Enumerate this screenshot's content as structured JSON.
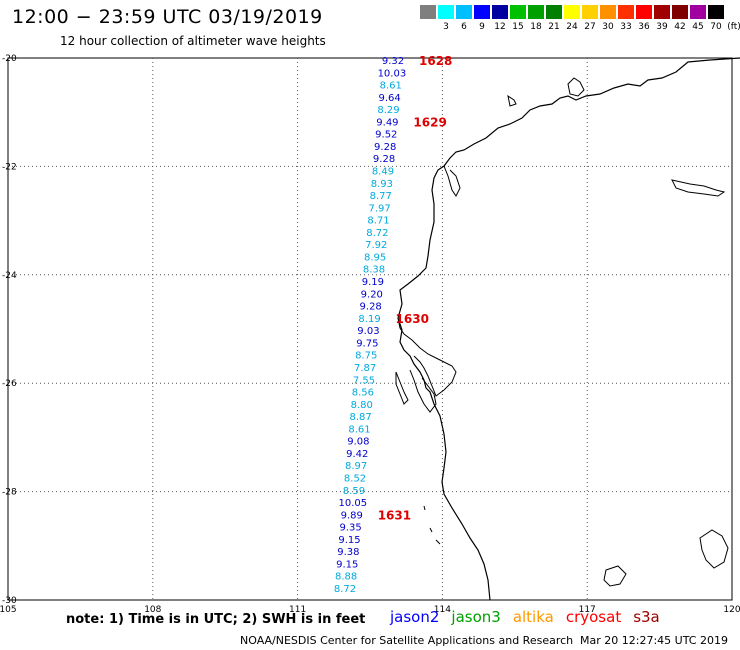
{
  "header": {
    "title": "12:00 − 23:59 UTC 03/19/2019",
    "subtitle": "12 hour collection of altimeter wave heights"
  },
  "color_scale": {
    "unit_label": "(ft)",
    "bins": [
      {
        "label": "",
        "color": "#7f7f7f"
      },
      {
        "label": "3",
        "color": "#00ffff"
      },
      {
        "label": "6",
        "color": "#00bfff"
      },
      {
        "label": "9",
        "color": "#0000ff"
      },
      {
        "label": "12",
        "color": "#0000a0"
      },
      {
        "label": "15",
        "color": "#00c000"
      },
      {
        "label": "18",
        "color": "#00a000"
      },
      {
        "label": "21",
        "color": "#008000"
      },
      {
        "label": "24",
        "color": "#ffff00"
      },
      {
        "label": "27",
        "color": "#ffd000"
      },
      {
        "label": "30",
        "color": "#ff9000"
      },
      {
        "label": "33",
        "color": "#ff3000"
      },
      {
        "label": "36",
        "color": "#ff0000"
      },
      {
        "label": "39",
        "color": "#a00000"
      },
      {
        "label": "42",
        "color": "#800000"
      },
      {
        "label": "45",
        "color": "#a000a0"
      },
      {
        "label": "70",
        "color": "#000000"
      }
    ]
  },
  "map": {
    "lon_labels": [
      "105",
      "108",
      "111",
      "114",
      "117",
      "120"
    ],
    "lat_labels": [
      "-20",
      "-22",
      "-24",
      "-26",
      "-28",
      "-30"
    ],
    "lon_values": [
      105,
      108,
      111,
      114,
      117,
      120
    ],
    "lat_values": [
      -20,
      -22,
      -24,
      -26,
      -28,
      -30
    ],
    "colors": {
      "dark": "#0000cc",
      "light": "#00aadd",
      "time": "#e00000",
      "coast": "#000000",
      "grid": "#555555"
    }
  },
  "wave_heights": [
    {
      "value": "9.32",
      "tone": "dark"
    },
    {
      "value": "10.03",
      "tone": "dark"
    },
    {
      "value": "8.61",
      "tone": "light"
    },
    {
      "value": "9.64",
      "tone": "dark"
    },
    {
      "value": "8.29",
      "tone": "light"
    },
    {
      "value": "9.49",
      "tone": "dark"
    },
    {
      "value": "9.52",
      "tone": "dark"
    },
    {
      "value": "9.28",
      "tone": "dark"
    },
    {
      "value": "9.28",
      "tone": "dark"
    },
    {
      "value": "8.49",
      "tone": "light"
    },
    {
      "value": "8.93",
      "tone": "light"
    },
    {
      "value": "8.77",
      "tone": "light"
    },
    {
      "value": "7.97",
      "tone": "light"
    },
    {
      "value": "8.71",
      "tone": "light"
    },
    {
      "value": "8.72",
      "tone": "light"
    },
    {
      "value": "7.92",
      "tone": "light"
    },
    {
      "value": "8.95",
      "tone": "light"
    },
    {
      "value": "8.38",
      "tone": "light"
    },
    {
      "value": "9.19",
      "tone": "dark"
    },
    {
      "value": "9.20",
      "tone": "dark"
    },
    {
      "value": "9.28",
      "tone": "dark"
    },
    {
      "value": "8.19",
      "tone": "light"
    },
    {
      "value": "9.03",
      "tone": "dark"
    },
    {
      "value": "9.75",
      "tone": "dark"
    },
    {
      "value": "8.75",
      "tone": "light"
    },
    {
      "value": "7.87",
      "tone": "light"
    },
    {
      "value": "7.55",
      "tone": "light"
    },
    {
      "value": "8.56",
      "tone": "light"
    },
    {
      "value": "8.80",
      "tone": "light"
    },
    {
      "value": "8.87",
      "tone": "light"
    },
    {
      "value": "8.61",
      "tone": "light"
    },
    {
      "value": "9.08",
      "tone": "dark"
    },
    {
      "value": "9.42",
      "tone": "dark"
    },
    {
      "value": "8.97",
      "tone": "light"
    },
    {
      "value": "8.52",
      "tone": "light"
    },
    {
      "value": "8.59",
      "tone": "light"
    },
    {
      "value": "10.05",
      "tone": "dark"
    },
    {
      "value": "9.89",
      "tone": "dark"
    },
    {
      "value": "9.35",
      "tone": "dark"
    },
    {
      "value": "9.15",
      "tone": "dark"
    },
    {
      "value": "9.38",
      "tone": "dark"
    },
    {
      "value": "9.15",
      "tone": "dark"
    },
    {
      "value": "8.88",
      "tone": "light"
    },
    {
      "value": "8.72",
      "tone": "light"
    }
  ],
  "time_marks": [
    {
      "label": "1628",
      "after_index": 0
    },
    {
      "label": "1629",
      "after_index": 5
    },
    {
      "label": "1630",
      "after_index": 21
    },
    {
      "label": "1631",
      "after_index": 37
    }
  ],
  "footer": {
    "note": "note: 1) Time is in UTC; 2) SWH is in feet",
    "satellites": [
      {
        "name": "jason2",
        "color": "#0000ff"
      },
      {
        "name": "jason3",
        "color": "#00a000"
      },
      {
        "name": "altika",
        "color": "#ff9900"
      },
      {
        "name": "cryosat",
        "color": "#ff0000"
      },
      {
        "name": "s3a",
        "color": "#a00000"
      }
    ],
    "credit": "NOAA/NESDIS Center for Satellite Applications and Research",
    "stamp": "Mar 20 12:27:45 UTC 2019"
  }
}
